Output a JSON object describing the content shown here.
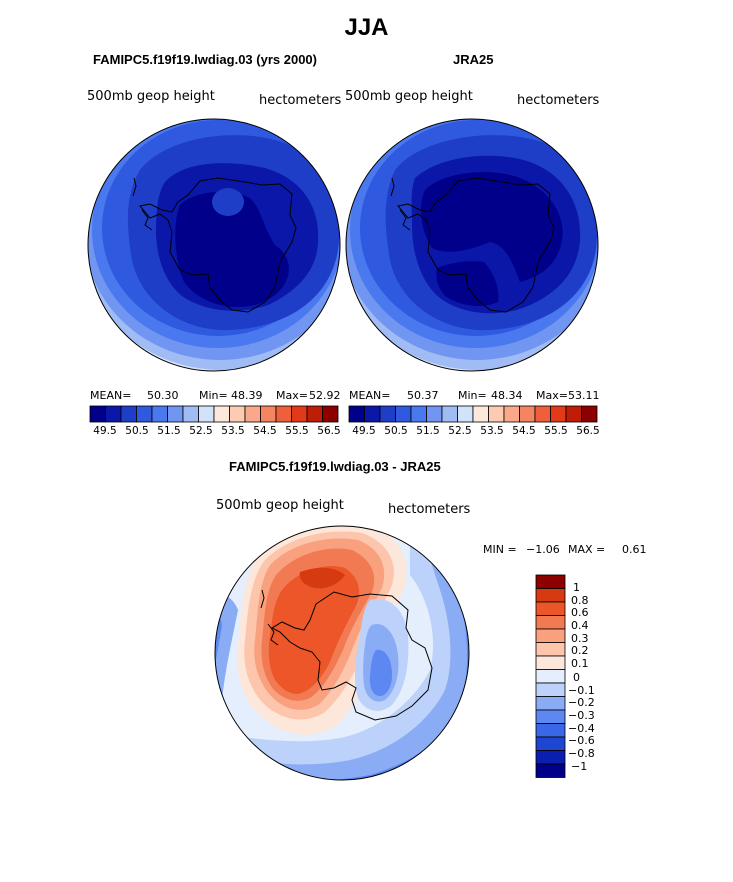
{
  "header": {
    "season": "JJA"
  },
  "panels": [
    {
      "title": "FAMIPC5.f19f19.lwdiag.03 (yrs 2000)",
      "variable": "500mb geop height",
      "units": "hectometers",
      "stats": {
        "mean_label": "MEAN=",
        "mean": "50.30",
        "min_label": "Min=",
        "min": "48.39",
        "max_label": "Max=",
        "max": "52.92"
      }
    },
    {
      "title": "JRA25",
      "variable": "500mb geop height",
      "units": "hectometers",
      "stats": {
        "mean_label": "MEAN=",
        "mean": "50.37",
        "min_label": "Min=",
        "min": "48.34",
        "max_label": "Max=",
        "max": "53.11"
      }
    }
  ],
  "diff_panel": {
    "title": "FAMIPC5.f19f19.lwdiag.03 - JRA25",
    "variable": "500mb geop height",
    "units": "hectometers",
    "min_label": "MIN =",
    "min": "−1.06",
    "max_label": "MAX =",
    "max": "0.61"
  },
  "colors": {
    "seq": [
      "#00008a",
      "#0a17a8",
      "#1f3ec8",
      "#2f5ae0",
      "#4a78ee",
      "#7196f2",
      "#a1bbf5",
      "#d2e2fb",
      "#fde8dc",
      "#fccbb1",
      "#f9a98a",
      "#f48462",
      "#ef5f3b",
      "#e23a18",
      "#be1e06",
      "#8c0000"
    ],
    "diff": [
      "#00008a",
      "#0a1fb0",
      "#1e46d2",
      "#3a67e6",
      "#5d87f1",
      "#8aacf4",
      "#bcd2fa",
      "#e4eefd",
      "#fde6da",
      "#fcc5ac",
      "#f9a07e",
      "#f27a52",
      "#ec5628",
      "#d63a10",
      "#8c0000"
    ]
  },
  "chart_data": [
    {
      "type": "heatmap",
      "title": "FAMIPC5.f19f19.lwdiag.03 (yrs 2000)",
      "projection": "polar-stereographic (south pole)",
      "variable": "500mb geop height",
      "units": "hectometers",
      "colorbar_ticks": [
        "49.5",
        "50.5",
        "51.5",
        "52.5",
        "53.5",
        "54.5",
        "55.5",
        "56.5"
      ],
      "contour_levels": [
        49,
        49.5,
        50,
        50.5,
        51,
        51.5,
        52,
        52.5,
        53,
        53.5,
        54,
        54.5,
        55,
        55.5,
        56,
        56.5
      ],
      "mean": 50.3,
      "min": 48.39,
      "max": 52.92
    },
    {
      "type": "heatmap",
      "title": "JRA25",
      "projection": "polar-stereographic (south pole)",
      "variable": "500mb geop height",
      "units": "hectometers",
      "colorbar_ticks": [
        "49.5",
        "50.5",
        "51.5",
        "52.5",
        "53.5",
        "54.5",
        "55.5",
        "56.5"
      ],
      "contour_levels": [
        49,
        49.5,
        50,
        50.5,
        51,
        51.5,
        52,
        52.5,
        53,
        53.5,
        54,
        54.5,
        55,
        55.5,
        56,
        56.5
      ],
      "mean": 50.37,
      "min": 48.34,
      "max": 53.11
    },
    {
      "type": "heatmap",
      "title": "FAMIPC5.f19f19.lwdiag.03 - JRA25",
      "projection": "polar-stereographic (south pole)",
      "variable": "500mb geop height",
      "units": "hectometers",
      "colorbar_ticks": [
        "1",
        "0.8",
        "0.6",
        "0.4",
        "0.3",
        "0.2",
        "0.1",
        "0",
        "−0.1",
        "−0.2",
        "−0.3",
        "−0.4",
        "−0.6",
        "−0.8",
        "−1"
      ],
      "min": -1.06,
      "max": 0.61
    }
  ]
}
